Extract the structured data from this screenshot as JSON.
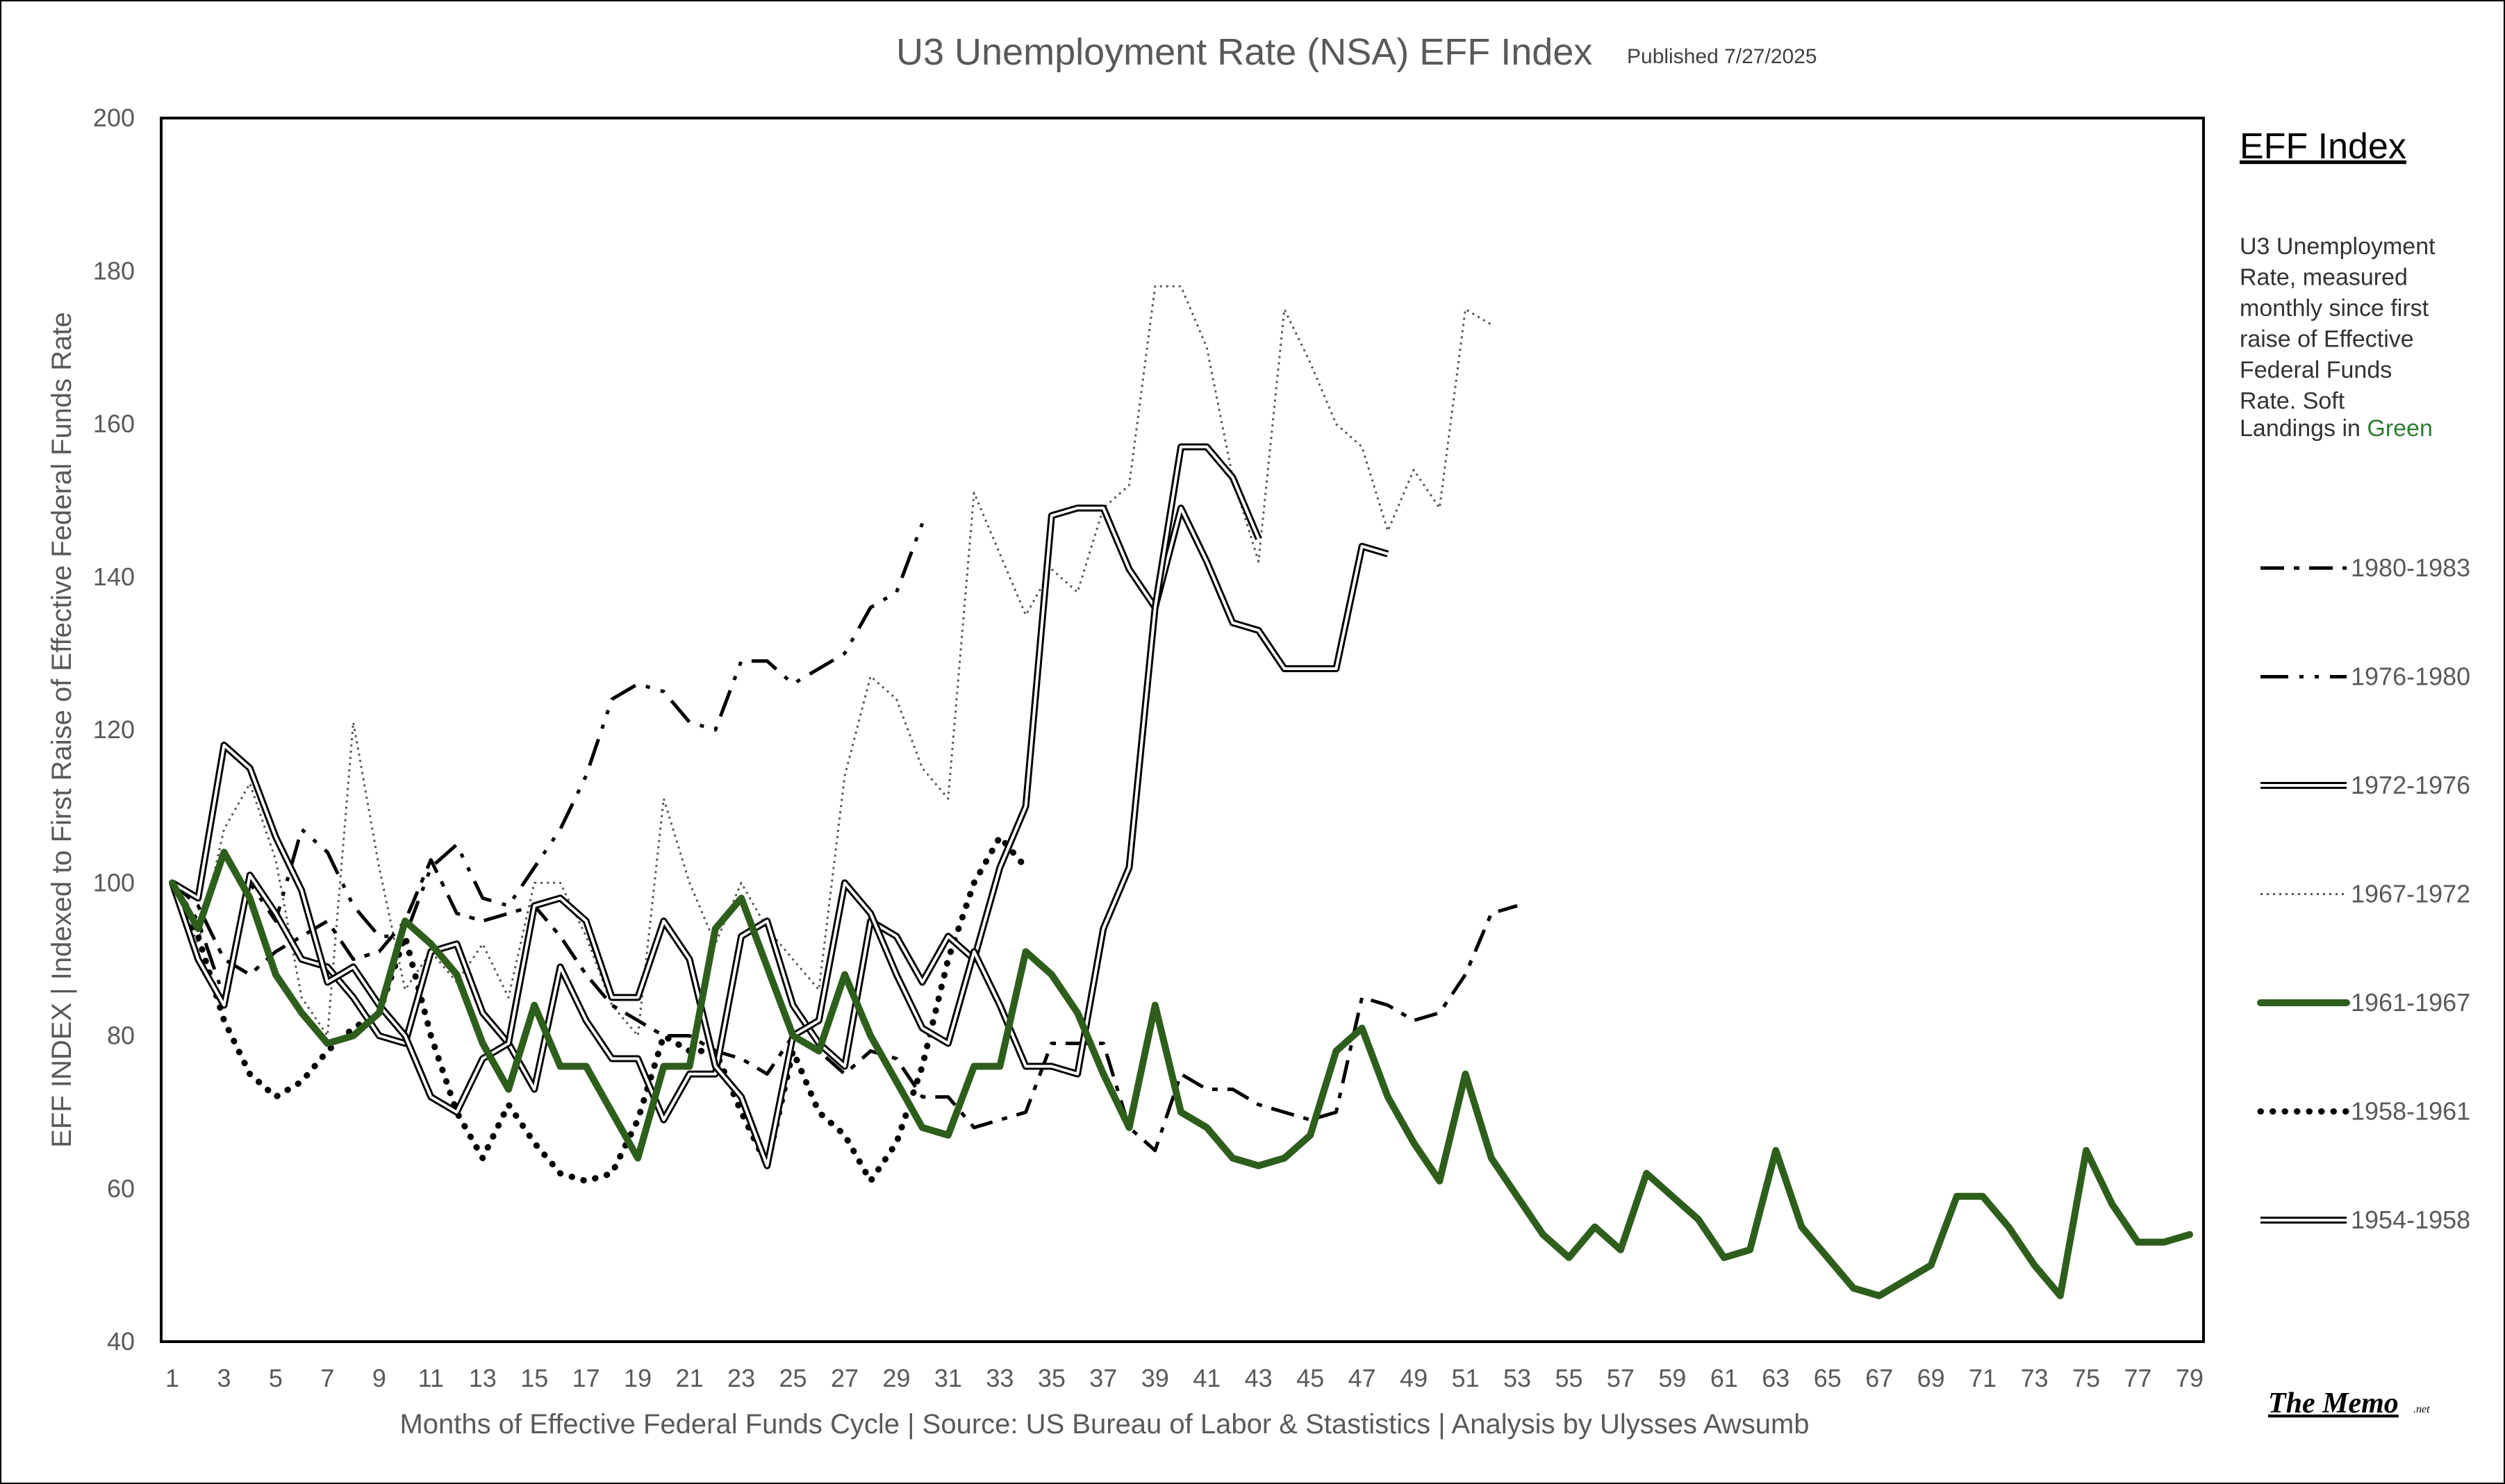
{
  "title": "U3 Unemployment Rate (NSA) EFF Index",
  "published": "Published 7/27/2025",
  "legend": {
    "heading": "EFF Index",
    "description_lines": [
      "U3 Unemployment",
      "Rate, measured",
      "monthly since first",
      "raise of Effective",
      "Federal Funds"
    ],
    "description_last": "Rate. Soft",
    "soft_prefix": "Landings in ",
    "soft_word": "Green",
    "soft_color": "#2E7D32"
  },
  "logo": {
    "text": "The Memo",
    "suffix": ".net"
  },
  "chart_data": {
    "type": "line",
    "xlabel": "Months of Effective Federal Funds Cycle  |  Source: US Bureau of Labor & Stastistics  |  Analysis by Ulysses Awsumb",
    "ylabel": "EFF INDEX | Indexed to First Raise of Effective Federal Funds Rate",
    "xlim": [
      1,
      79
    ],
    "ylim": [
      40,
      200
    ],
    "yticks": [
      40,
      60,
      80,
      100,
      120,
      140,
      160,
      180,
      200
    ],
    "xticks": [
      1,
      3,
      5,
      7,
      9,
      11,
      13,
      15,
      17,
      19,
      21,
      23,
      25,
      27,
      29,
      31,
      33,
      35,
      37,
      39,
      41,
      43,
      45,
      47,
      49,
      51,
      53,
      55,
      57,
      59,
      61,
      63,
      65,
      67,
      69,
      71,
      73,
      75,
      77,
      79
    ],
    "grid": false,
    "legend_position": "right",
    "series": [
      {
        "name": "1980-1983",
        "style": "dashdot",
        "color": "#000000",
        "values": [
          100,
          97,
          90,
          88,
          91,
          93,
          95,
          90,
          91,
          95,
          103,
          96,
          95,
          96,
          97,
          93,
          88,
          84,
          82,
          80,
          80,
          78,
          77,
          75,
          80,
          78,
          75,
          78,
          77,
          72,
          72,
          68,
          69,
          70,
          79,
          79,
          79,
          68,
          65,
          75,
          73,
          73,
          71,
          70,
          69,
          70,
          85,
          84,
          82,
          83,
          88,
          96,
          97
        ]
      },
      {
        "name": "1976-1980",
        "style": "longdash",
        "color": "#000000",
        "values": [
          100,
          95,
          85,
          100,
          95,
          107,
          104,
          97,
          93,
          93,
          102,
          105,
          98,
          97,
          102,
          107,
          114,
          124,
          126,
          125,
          121,
          120,
          129,
          129,
          126,
          128,
          130,
          136,
          138,
          147
        ]
      },
      {
        "name": "1972-1976",
        "style": "double",
        "color": "#000000",
        "values": [
          100,
          90,
          84,
          101,
          96,
          90,
          89,
          85,
          80,
          79,
          91,
          92,
          83,
          79,
          73,
          89,
          82,
          77,
          77,
          69,
          75,
          75,
          93,
          95,
          84,
          79,
          76,
          95,
          93,
          87,
          93,
          90,
          102,
          110,
          148,
          149,
          149,
          141,
          136,
          149,
          142,
          134,
          133,
          128,
          128,
          128,
          144,
          143
        ]
      },
      {
        "name": "1967-1972",
        "style": "dotted",
        "color": "#555555",
        "values": [
          100,
          92,
          107,
          113,
          103,
          85,
          80,
          121,
          102,
          86,
          91,
          87,
          92,
          85,
          100,
          100,
          93,
          84,
          80,
          111,
          100,
          92,
          100,
          94,
          90,
          86,
          114,
          127,
          124,
          115,
          111,
          151,
          143,
          135,
          141,
          138,
          149,
          152,
          178,
          178,
          170,
          153,
          142,
          175,
          168,
          160,
          157,
          146,
          154,
          149,
          175,
          173
        ]
      },
      {
        "name": "1961-1967",
        "style": "thick",
        "color": "#2E5E1C",
        "values": [
          100,
          94,
          104,
          98,
          88,
          83,
          79,
          80,
          83,
          95,
          92,
          88,
          79,
          73,
          84,
          76,
          76,
          70,
          64,
          76,
          76,
          94,
          98,
          89,
          80,
          78,
          88,
          80,
          74,
          68,
          67,
          76,
          76,
          91,
          88,
          83,
          75,
          68,
          84,
          70,
          68,
          64,
          63,
          64,
          67,
          78,
          81,
          72,
          66,
          61,
          75,
          64,
          59,
          54,
          51,
          55,
          52,
          62,
          59,
          56,
          51,
          52,
          65,
          55,
          51,
          47,
          46,
          48,
          50,
          59,
          59,
          55,
          50,
          46,
          65,
          58,
          53,
          53,
          54
        ]
      },
      {
        "name": "1958-1961",
        "style": "bigdot",
        "color": "#000000",
        "values": [
          100,
          93,
          82,
          75,
          72,
          74,
          78,
          81,
          83,
          93,
          80,
          70,
          64,
          71,
          66,
          62,
          61,
          62,
          69,
          80,
          78,
          78,
          70,
          63,
          78,
          70,
          67,
          61,
          66,
          76,
          90,
          100,
          106,
          102
        ]
      },
      {
        "name": "1954-1958",
        "style": "double",
        "color": "#000000",
        "values": [
          100,
          98,
          118,
          115,
          106,
          99,
          87,
          89,
          84,
          80,
          72,
          70,
          77,
          79,
          97,
          98,
          95,
          85,
          85,
          95,
          90,
          76,
          72,
          63,
          80,
          82,
          100,
          96,
          88,
          81,
          79,
          91,
          84,
          76,
          76,
          75,
          94,
          102,
          136,
          157,
          157,
          153,
          145
        ]
      }
    ]
  }
}
